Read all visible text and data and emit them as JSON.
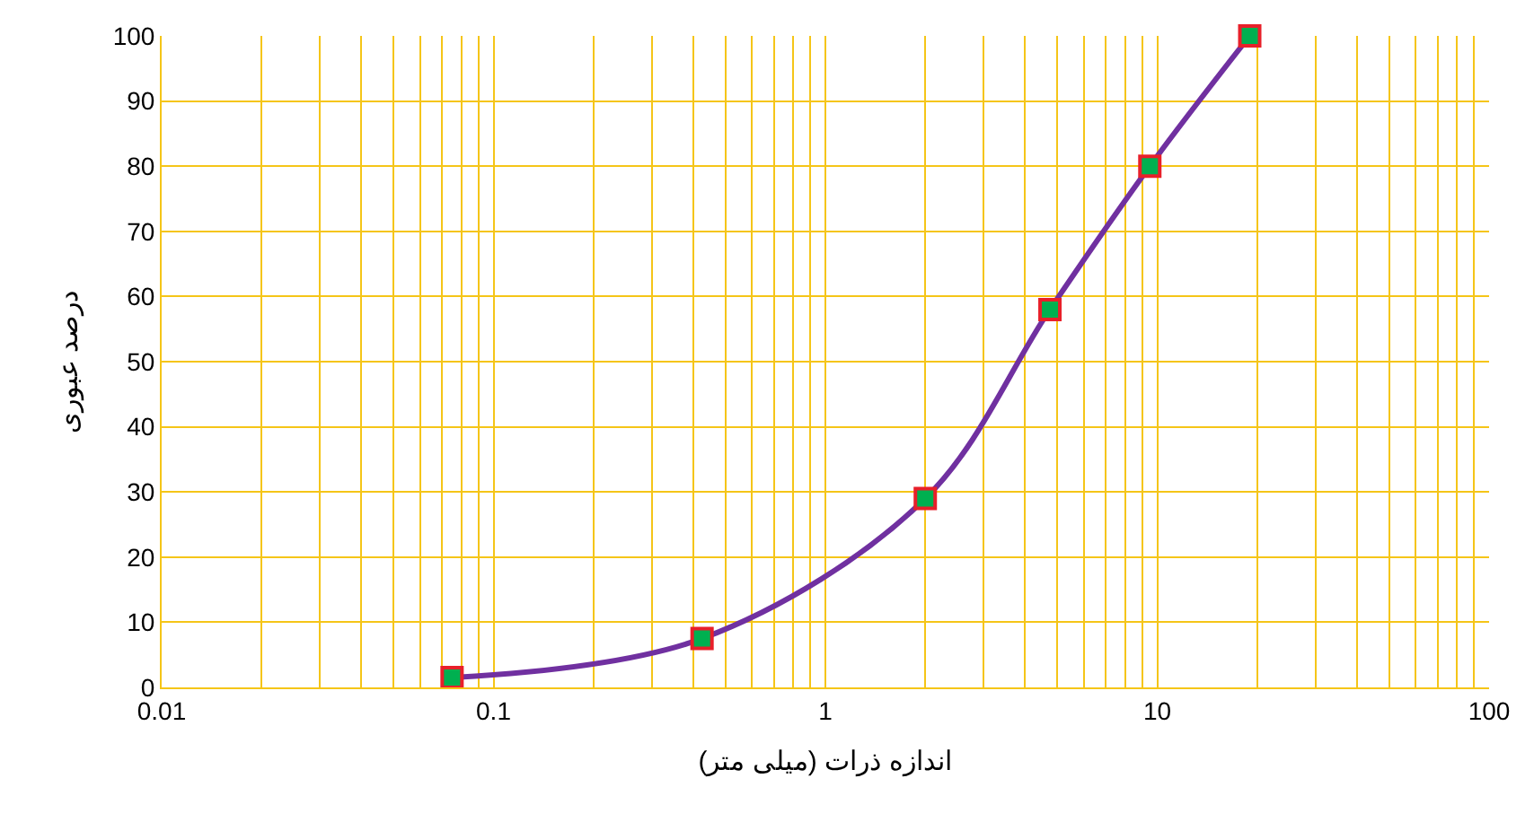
{
  "chart_data": {
    "type": "line",
    "xlabel": "اندازه ذرات (میلی متر)",
    "ylabel": "درصد عبوری",
    "x": [
      0.075,
      0.425,
      2,
      4.75,
      9.5,
      19
    ],
    "series": [
      {
        "color": "#7030a0",
        "values": [
          1.5,
          7.5,
          29,
          58,
          80,
          100
        ]
      }
    ],
    "log": "x",
    "xlim": [
      0.01,
      100
    ],
    "xticks": [
      0.01,
      0.1,
      1,
      10,
      100
    ],
    "ylim": [
      0,
      100
    ],
    "yticks": [
      0,
      10,
      20,
      30,
      40,
      50,
      60,
      70,
      80,
      90,
      100
    ],
    "grid": true,
    "marker": "square",
    "line_style": "solid"
  }
}
